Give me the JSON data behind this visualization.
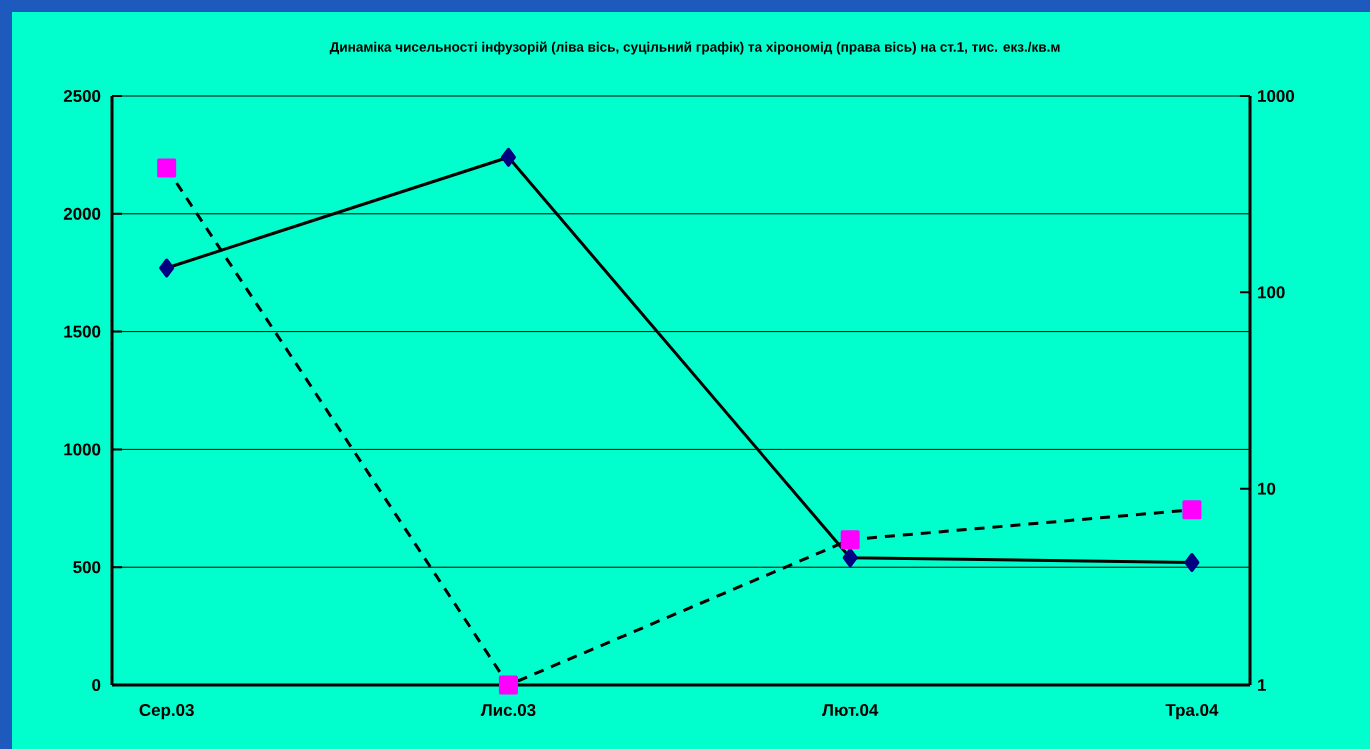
{
  "chart_data": {
    "type": "line",
    "title": "Динаміка чисельності інфузорій (ліва вісь, суцільний графік) та хірономід (права вісь) на ст.1, тис. екз./кв.м",
    "categories": [
      "Сер.03",
      "Лис.03",
      "Лют.04",
      "Тра.04"
    ],
    "series": [
      {
        "color": "#000080",
        "values": [
          1770,
          2240,
          540,
          520
        ],
        "marker": "diamond",
        "line_style": "solid"
      },
      {
        "color": "#ff00ff",
        "values": [
          430,
          1,
          5.5,
          7.8
        ],
        "marker": "square",
        "line_style": "dashed",
        "axis": "y2"
      }
    ],
    "ylim": [
      0,
      2500
    ],
    "yticks": [
      0,
      500,
      1000,
      1500,
      2000,
      2500
    ],
    "y2lim": [
      1,
      1000
    ],
    "y2ticks": [
      1,
      10,
      100,
      1000
    ],
    "log": "y2",
    "grid": "y"
  }
}
